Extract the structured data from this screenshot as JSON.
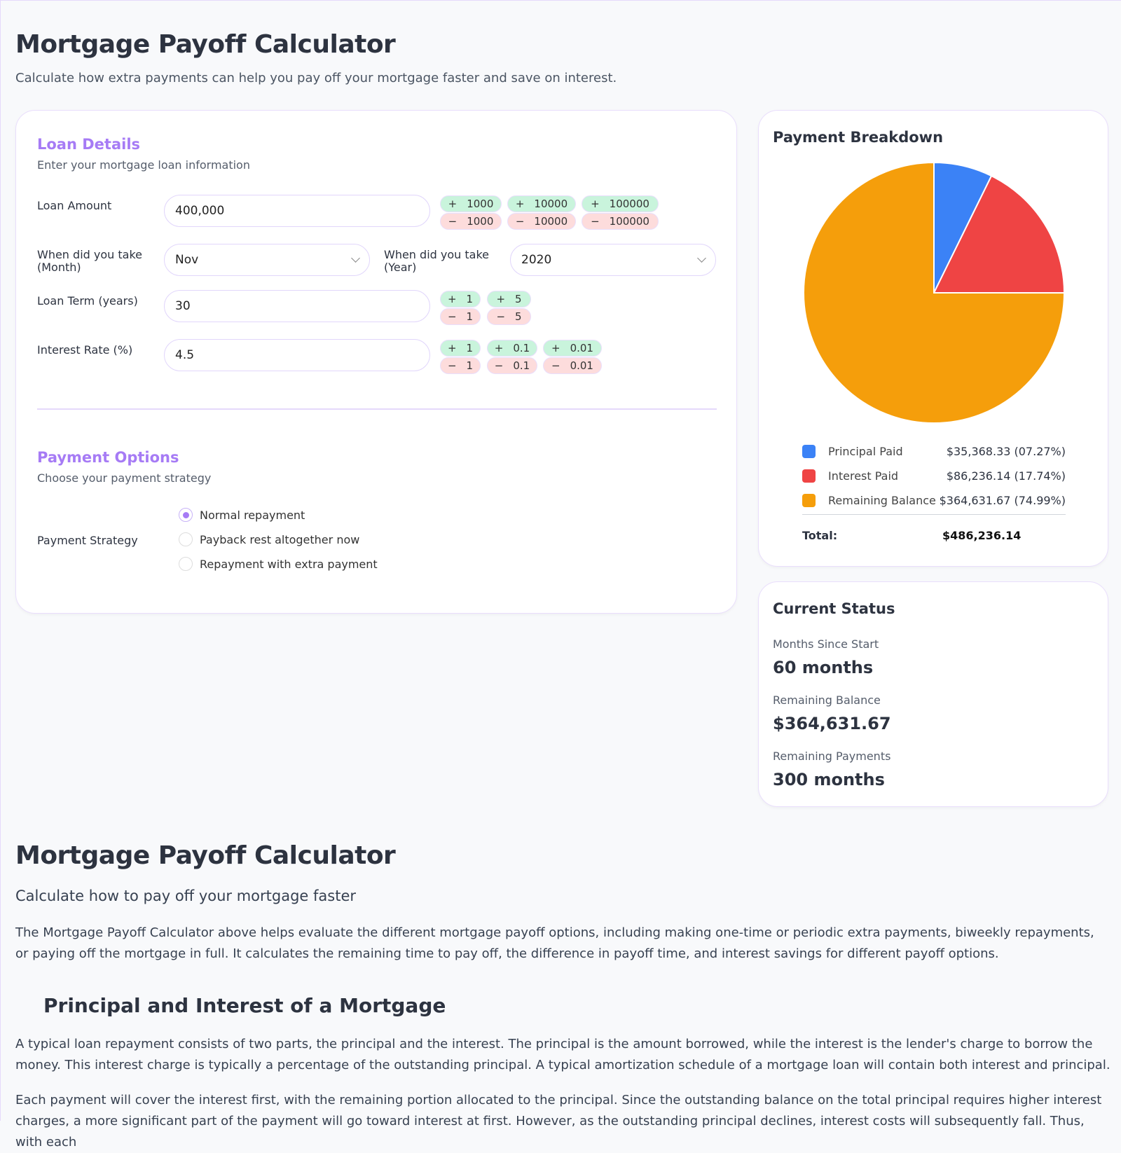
{
  "header": {
    "title": "Mortgage Payoff Calculator",
    "subtitle": "Calculate how extra payments can help you pay off your mortgage faster and save on interest."
  },
  "loan": {
    "title": "Loan Details",
    "subtitle": "Enter your mortgage loan information",
    "amount_label": "Loan Amount",
    "amount": "400,000",
    "amount_plus": [
      "+",
      "1000",
      "10000",
      "100000"
    ],
    "amount_minus": [
      "−",
      "1000",
      "10000",
      "100000"
    ],
    "month_label": "When did you take (Month)",
    "month": "Nov",
    "year_label": "When did you take (Year)",
    "year": "2020",
    "term_label": "Loan Term (years)",
    "term": "30",
    "term_steps": [
      "1",
      "5"
    ],
    "rate_label": "Interest Rate (%)",
    "rate": "4.5",
    "rate_steps": [
      "1",
      "0.1",
      "0.01"
    ]
  },
  "options": {
    "title": "Payment Options",
    "subtitle": "Choose your payment strategy",
    "strategy_label": "Payment Strategy",
    "strategies": [
      "Normal repayment",
      "Payback rest altogether now",
      "Repayment with extra payment"
    ],
    "selected": 0
  },
  "breakdown": {
    "title": "Payment Breakdown",
    "chart_data": {
      "type": "pie",
      "values": [
        {
          "name": "Principal Paid",
          "value": 35368.33,
          "percent": 7.27,
          "color": "#3b82f6"
        },
        {
          "name": "Interest Paid",
          "value": 86236.14,
          "percent": 17.74,
          "color": "#ef4444"
        },
        {
          "name": "Remaining Balance",
          "value": 364631.67,
          "percent": 74.99,
          "color": "#f59e0b"
        }
      ]
    },
    "legend": [
      {
        "label": "Principal Paid",
        "value": "$35,368.33 (07.27%)"
      },
      {
        "label": "Interest Paid",
        "value": "$86,236.14 (17.74%)"
      },
      {
        "label": "Remaining Balance",
        "value": "$364,631.67 (74.99%)"
      }
    ],
    "total_label": "Total:",
    "total": "$486,236.14"
  },
  "status": {
    "title": "Current Status",
    "months_label": "Months Since Start",
    "months": "60 months",
    "balance_label": "Remaining Balance",
    "balance": "$364,631.67",
    "payments_label": "Remaining Payments",
    "payments": "300 months"
  },
  "article": {
    "title": "Mortgage Payoff Calculator",
    "subtitle": "Calculate how to pay off your mortgage faster",
    "p1": "The Mortgage Payoff Calculator above helps evaluate the different mortgage payoff options, including making one-time or periodic extra payments, biweekly repayments, or paying off the mortgage in full. It calculates the remaining time to pay off, the difference in payoff time, and interest savings for different payoff options.",
    "h2": "Principal and Interest of a Mortgage",
    "p2": "A typical loan repayment consists of two parts, the principal and the interest. The principal is the amount borrowed, while the interest is the lender's charge to borrow the money. This interest charge is typically a percentage of the outstanding principal. A typical amortization schedule of a mortgage loan will contain both interest and principal.",
    "p3": "Each payment will cover the interest first, with the remaining portion allocated to the principal. Since the outstanding balance on the total principal requires higher interest charges, a more significant part of the payment will go toward interest at first. However, as the outstanding principal declines, interest costs will subsequently fall. Thus, with each"
  }
}
